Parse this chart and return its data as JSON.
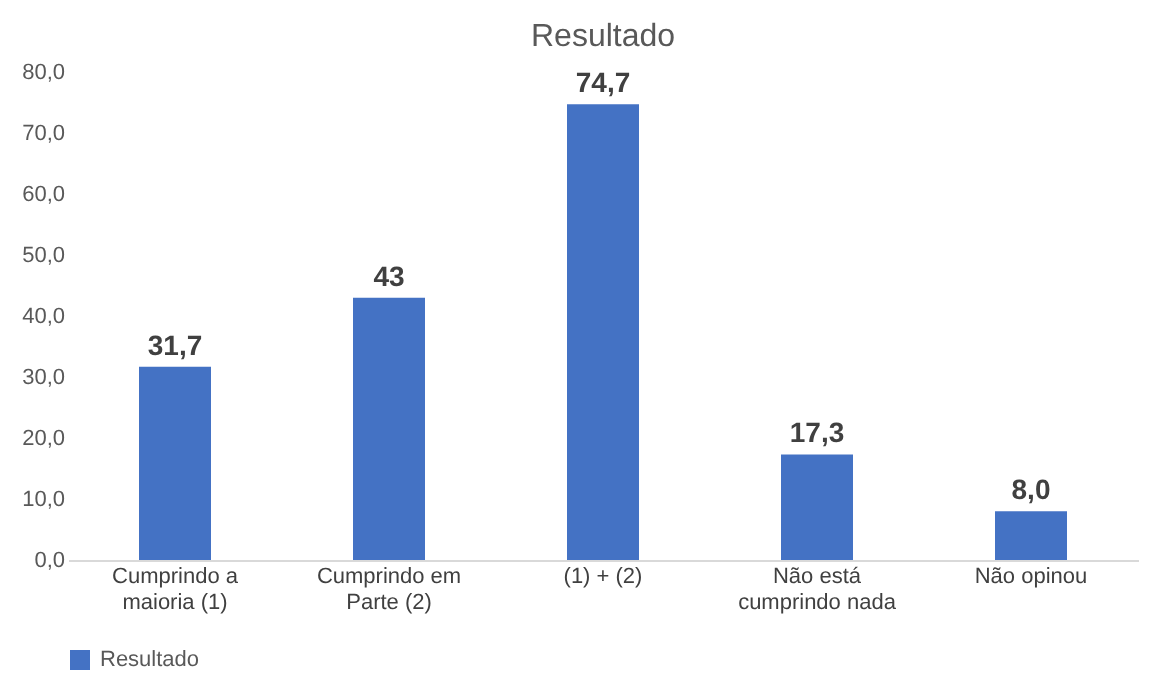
{
  "chart_data": {
    "type": "bar",
    "title": "Resultado",
    "categories": [
      "Cumprindo a maioria (1)",
      "Cumprindo em Parte (2)",
      "(1) + (2)",
      "Não está cumprindo nada",
      "Não opinou"
    ],
    "series": [
      {
        "name": "Resultado",
        "color": "#4472c4",
        "values": [
          31.7,
          43,
          74.7,
          17.3,
          8.0
        ],
        "value_labels": [
          "31,7",
          "43",
          "74,7",
          "17,3",
          "8,0"
        ]
      }
    ],
    "ylim": [
      0,
      80
    ],
    "yticks": [
      {
        "value": 0,
        "label": "0,0"
      },
      {
        "value": 10,
        "label": "10,0"
      },
      {
        "value": 20,
        "label": "20,0"
      },
      {
        "value": 30,
        "label": "30,0"
      },
      {
        "value": 40,
        "label": "40,0"
      },
      {
        "value": 50,
        "label": "50,0"
      },
      {
        "value": 60,
        "label": "60,0"
      },
      {
        "value": 70,
        "label": "70,0"
      },
      {
        "value": 80,
        "label": "80,0"
      }
    ],
    "grid": false,
    "legend": "bottom"
  }
}
